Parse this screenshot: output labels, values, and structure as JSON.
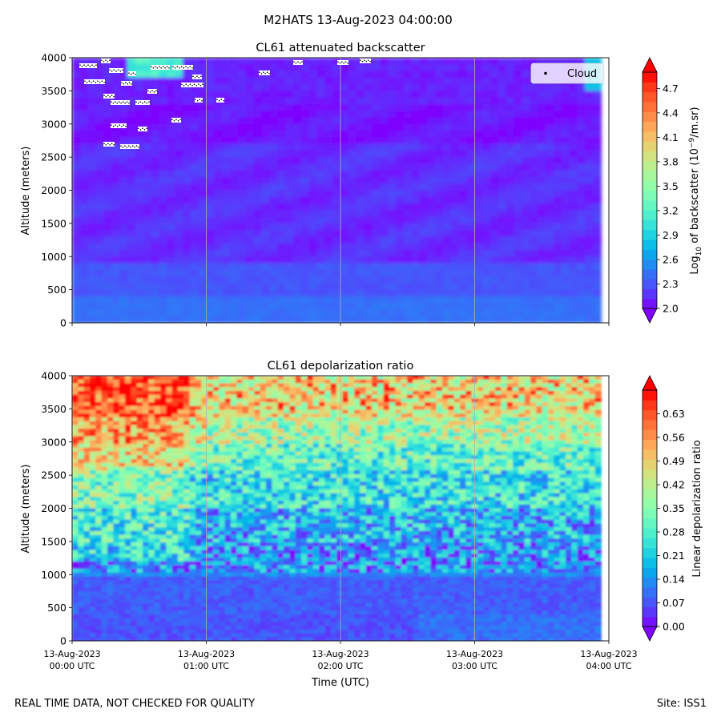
{
  "figure": {
    "suptitle": "M2HATS 13-Aug-2023 04:00:00",
    "footer_left": "REAL TIME DATA, NOT CHECKED FOR QUALITY",
    "footer_right": "Site: ISS1",
    "xlabel": "Time (UTC)",
    "x_ticks": [
      {
        "date": "13-Aug-2023",
        "time": "00:00 UTC"
      },
      {
        "date": "13-Aug-2023",
        "time": "01:00 UTC"
      },
      {
        "date": "13-Aug-2023",
        "time": "02:00 UTC"
      },
      {
        "date": "13-Aug-2023",
        "time": "03:00 UTC"
      },
      {
        "date": "13-Aug-2023",
        "time": "04:00 UTC"
      }
    ]
  },
  "colormap": [
    "#7f00ff",
    "#4f49fb",
    "#2c7ef7",
    "#00b5eb",
    "#2adddd",
    "#5af5c8",
    "#87feb0",
    "#b2f595",
    "#dcdd78",
    "#ffb360",
    "#ff7e41",
    "#ff4a22",
    "#ff0000"
  ],
  "chart_data": [
    {
      "type": "heatmap",
      "title": "CL61 attenuated backscatter",
      "ylabel": "Altitude (meters)",
      "xlim": [
        "13-Aug-2023 00:00 UTC",
        "13-Aug-2023 04:00 UTC"
      ],
      "ylim": [
        0,
        4000
      ],
      "y_ticks": [
        "0",
        "500",
        "1000",
        "1500",
        "2000",
        "2500",
        "3000",
        "3500",
        "4000"
      ],
      "grid": "vertical lines at hourly ticks",
      "colorbar": {
        "label_prefix": "Log",
        "label_sub": "10",
        "label_mid": " of backscatter (10",
        "label_sup": "−9",
        "label_suffix": "/m.sr)",
        "range": [
          2.0,
          4.9
        ],
        "ticks": [
          "2.0",
          "2.3",
          "2.6",
          "2.9",
          "3.2",
          "3.5",
          "3.8",
          "4.1",
          "4.4",
          "4.7"
        ],
        "extend": "both"
      },
      "legend": {
        "entries": [
          "Cloud"
        ],
        "placement": "top-right"
      },
      "description": "Mostly low values (~2.0-2.4) throughout; slightly higher (~2.4-2.6) near the surface below 500 m; a brighter region (~3.2) near 3900 m around 00:30; cloud markers scattered at 2700-4000 m between 00:00 and 01:10, plus a few near 3800-3950 m later"
    },
    {
      "type": "heatmap",
      "title": "CL61 depolarization ratio",
      "ylabel": "Altitude (meters)",
      "xlim": [
        "13-Aug-2023 00:00 UTC",
        "13-Aug-2023 04:00 UTC"
      ],
      "ylim": [
        0,
        4000
      ],
      "y_ticks": [
        "0",
        "500",
        "1000",
        "1500",
        "2000",
        "2500",
        "3000",
        "3500",
        "4000"
      ],
      "grid": "vertical lines at hourly ticks",
      "colorbar": {
        "label": "Linear depolarization ratio",
        "range": [
          0.0,
          0.7
        ],
        "ticks": [
          "0.00",
          "0.07",
          "0.14",
          "0.21",
          "0.28",
          "0.35",
          "0.42",
          "0.49",
          "0.56",
          "0.63"
        ],
        "extend": "both"
      },
      "description": "Low values (~0.05-0.1) below 1000 m, increasing with altitude; mixed 0.2-0.4 between 1500-3000 m; high values (0.5-0.7) near 3000-4000 m, especially 00:00-01:00"
    }
  ]
}
